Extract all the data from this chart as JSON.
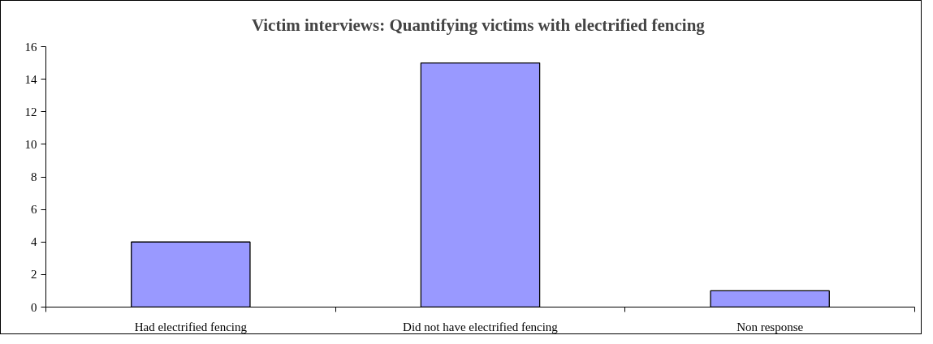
{
  "chart_data": {
    "type": "bar",
    "title": "Victim interviews:  Quantifying victims with electrified fencing",
    "categories": [
      "Had electrified fencing",
      "Did not have electrified fencing",
      "Non response"
    ],
    "values": [
      4,
      15,
      1
    ],
    "color": "#9999ff",
    "ylim": [
      0,
      16
    ],
    "yticks": [
      0,
      2,
      4,
      6,
      8,
      10,
      12,
      14,
      16
    ],
    "grid": false
  }
}
